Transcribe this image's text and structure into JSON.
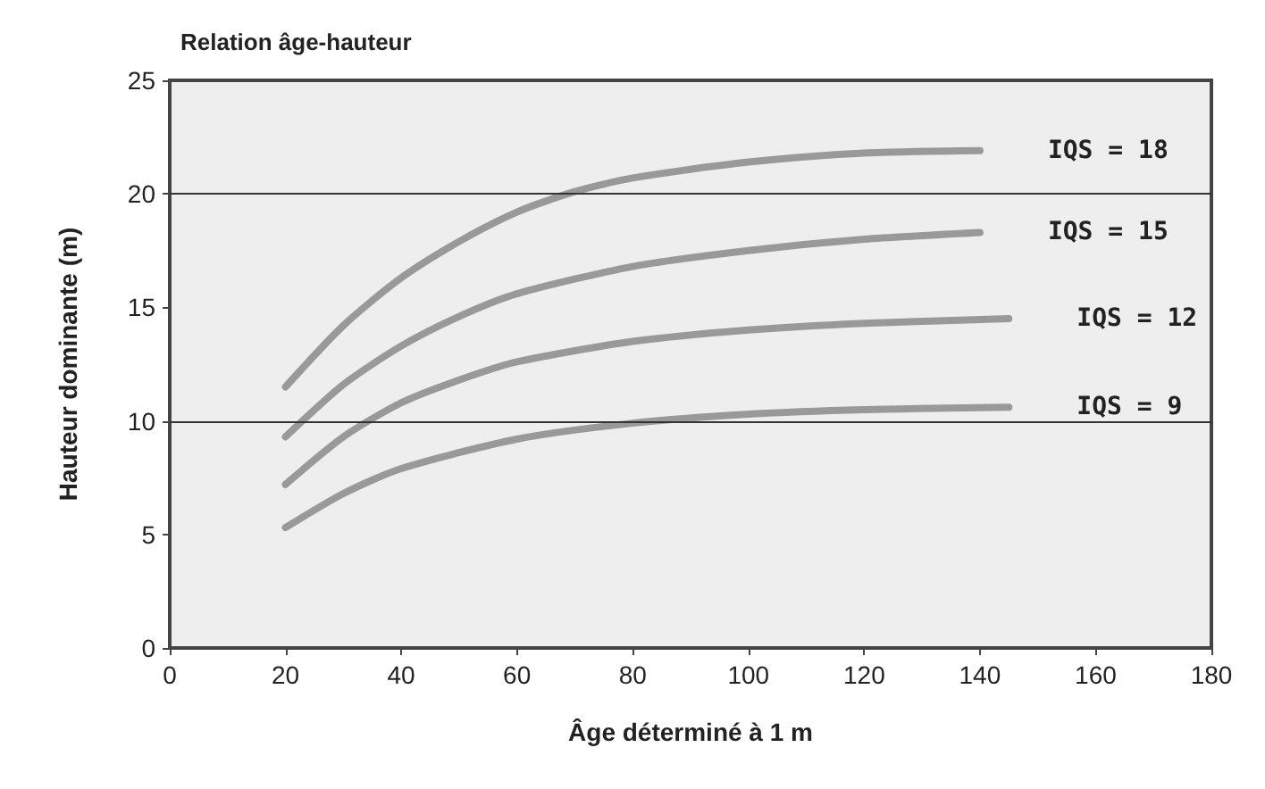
{
  "chart_data": {
    "type": "line",
    "title": "Relation âge-hauteur",
    "xlabel": "Âge déterminé à 1 m",
    "ylabel": "Hauteur dominante (m)",
    "xlim": [
      0,
      180
    ],
    "xticks": [
      0,
      20,
      40,
      60,
      80,
      100,
      120,
      140,
      160,
      180
    ],
    "ylim": [
      0,
      25
    ],
    "yticks": [
      0,
      5,
      10,
      15,
      20,
      25
    ],
    "grid": false,
    "legend": false,
    "marker": "none",
    "line_style": "solid",
    "ref_lines": [
      {
        "axis": "y",
        "value": 10,
        "color": "#333333"
      },
      {
        "axis": "y",
        "value": 20,
        "color": "#333333"
      }
    ],
    "series": [
      {
        "name": "IQS = 18",
        "color": "#999999",
        "x": [
          20,
          30,
          40,
          50,
          60,
          70,
          80,
          100,
          120,
          140
        ],
        "values": [
          11.5,
          14.2,
          16.3,
          17.9,
          19.2,
          20.1,
          20.7,
          21.4,
          21.8,
          21.9
        ]
      },
      {
        "name": "IQS = 15",
        "color": "#999999",
        "x": [
          20,
          30,
          40,
          50,
          60,
          80,
          100,
          120,
          140
        ],
        "values": [
          9.3,
          11.6,
          13.3,
          14.6,
          15.6,
          16.8,
          17.5,
          18.0,
          18.3
        ]
      },
      {
        "name": "IQS = 12",
        "color": "#999999",
        "x": [
          20,
          30,
          40,
          50,
          60,
          80,
          100,
          120,
          145
        ],
        "values": [
          7.2,
          9.3,
          10.8,
          11.8,
          12.6,
          13.5,
          14.0,
          14.3,
          14.5
        ]
      },
      {
        "name": "IQS = 9",
        "color": "#999999",
        "x": [
          20,
          30,
          40,
          60,
          80,
          100,
          120,
          145
        ],
        "values": [
          5.3,
          6.8,
          7.9,
          9.2,
          9.9,
          10.3,
          10.5,
          10.6
        ]
      }
    ]
  }
}
